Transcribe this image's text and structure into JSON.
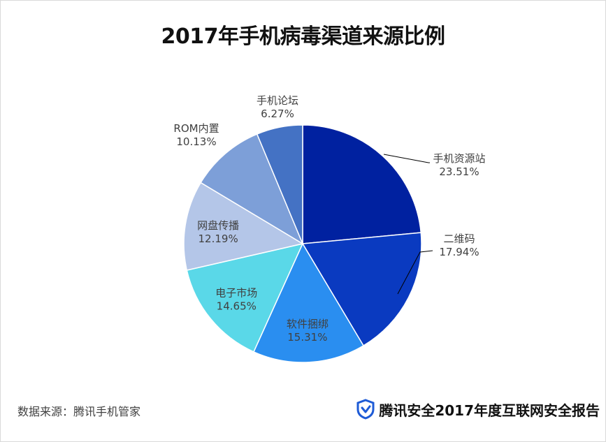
{
  "chart_data": {
    "type": "pie",
    "title": "2017年手机病毒渠道来源比例",
    "categories": [
      "手机资源站",
      "二维码",
      "软件捆绑",
      "电子市场",
      "网盘传播",
      "ROM内置",
      "手机论坛"
    ],
    "values": [
      23.51,
      17.94,
      15.31,
      14.65,
      12.19,
      10.13,
      6.27
    ],
    "value_labels": [
      "23.51%",
      "17.94%",
      "15.31%",
      "14.65%",
      "12.19%",
      "10.13%",
      "6.27%"
    ],
    "colors": [
      "#0021a0",
      "#0a3ac0",
      "#2a8ef0",
      "#5ad8e8",
      "#b4c6e8",
      "#7d9fd8",
      "#4472c4"
    ],
    "start_angle": "top",
    "direction": "clockwise",
    "legend": "none"
  },
  "footer": {
    "source": "数据来源：腾讯手机管家",
    "brand": "腾讯安全2017年度互联网安全报告"
  }
}
